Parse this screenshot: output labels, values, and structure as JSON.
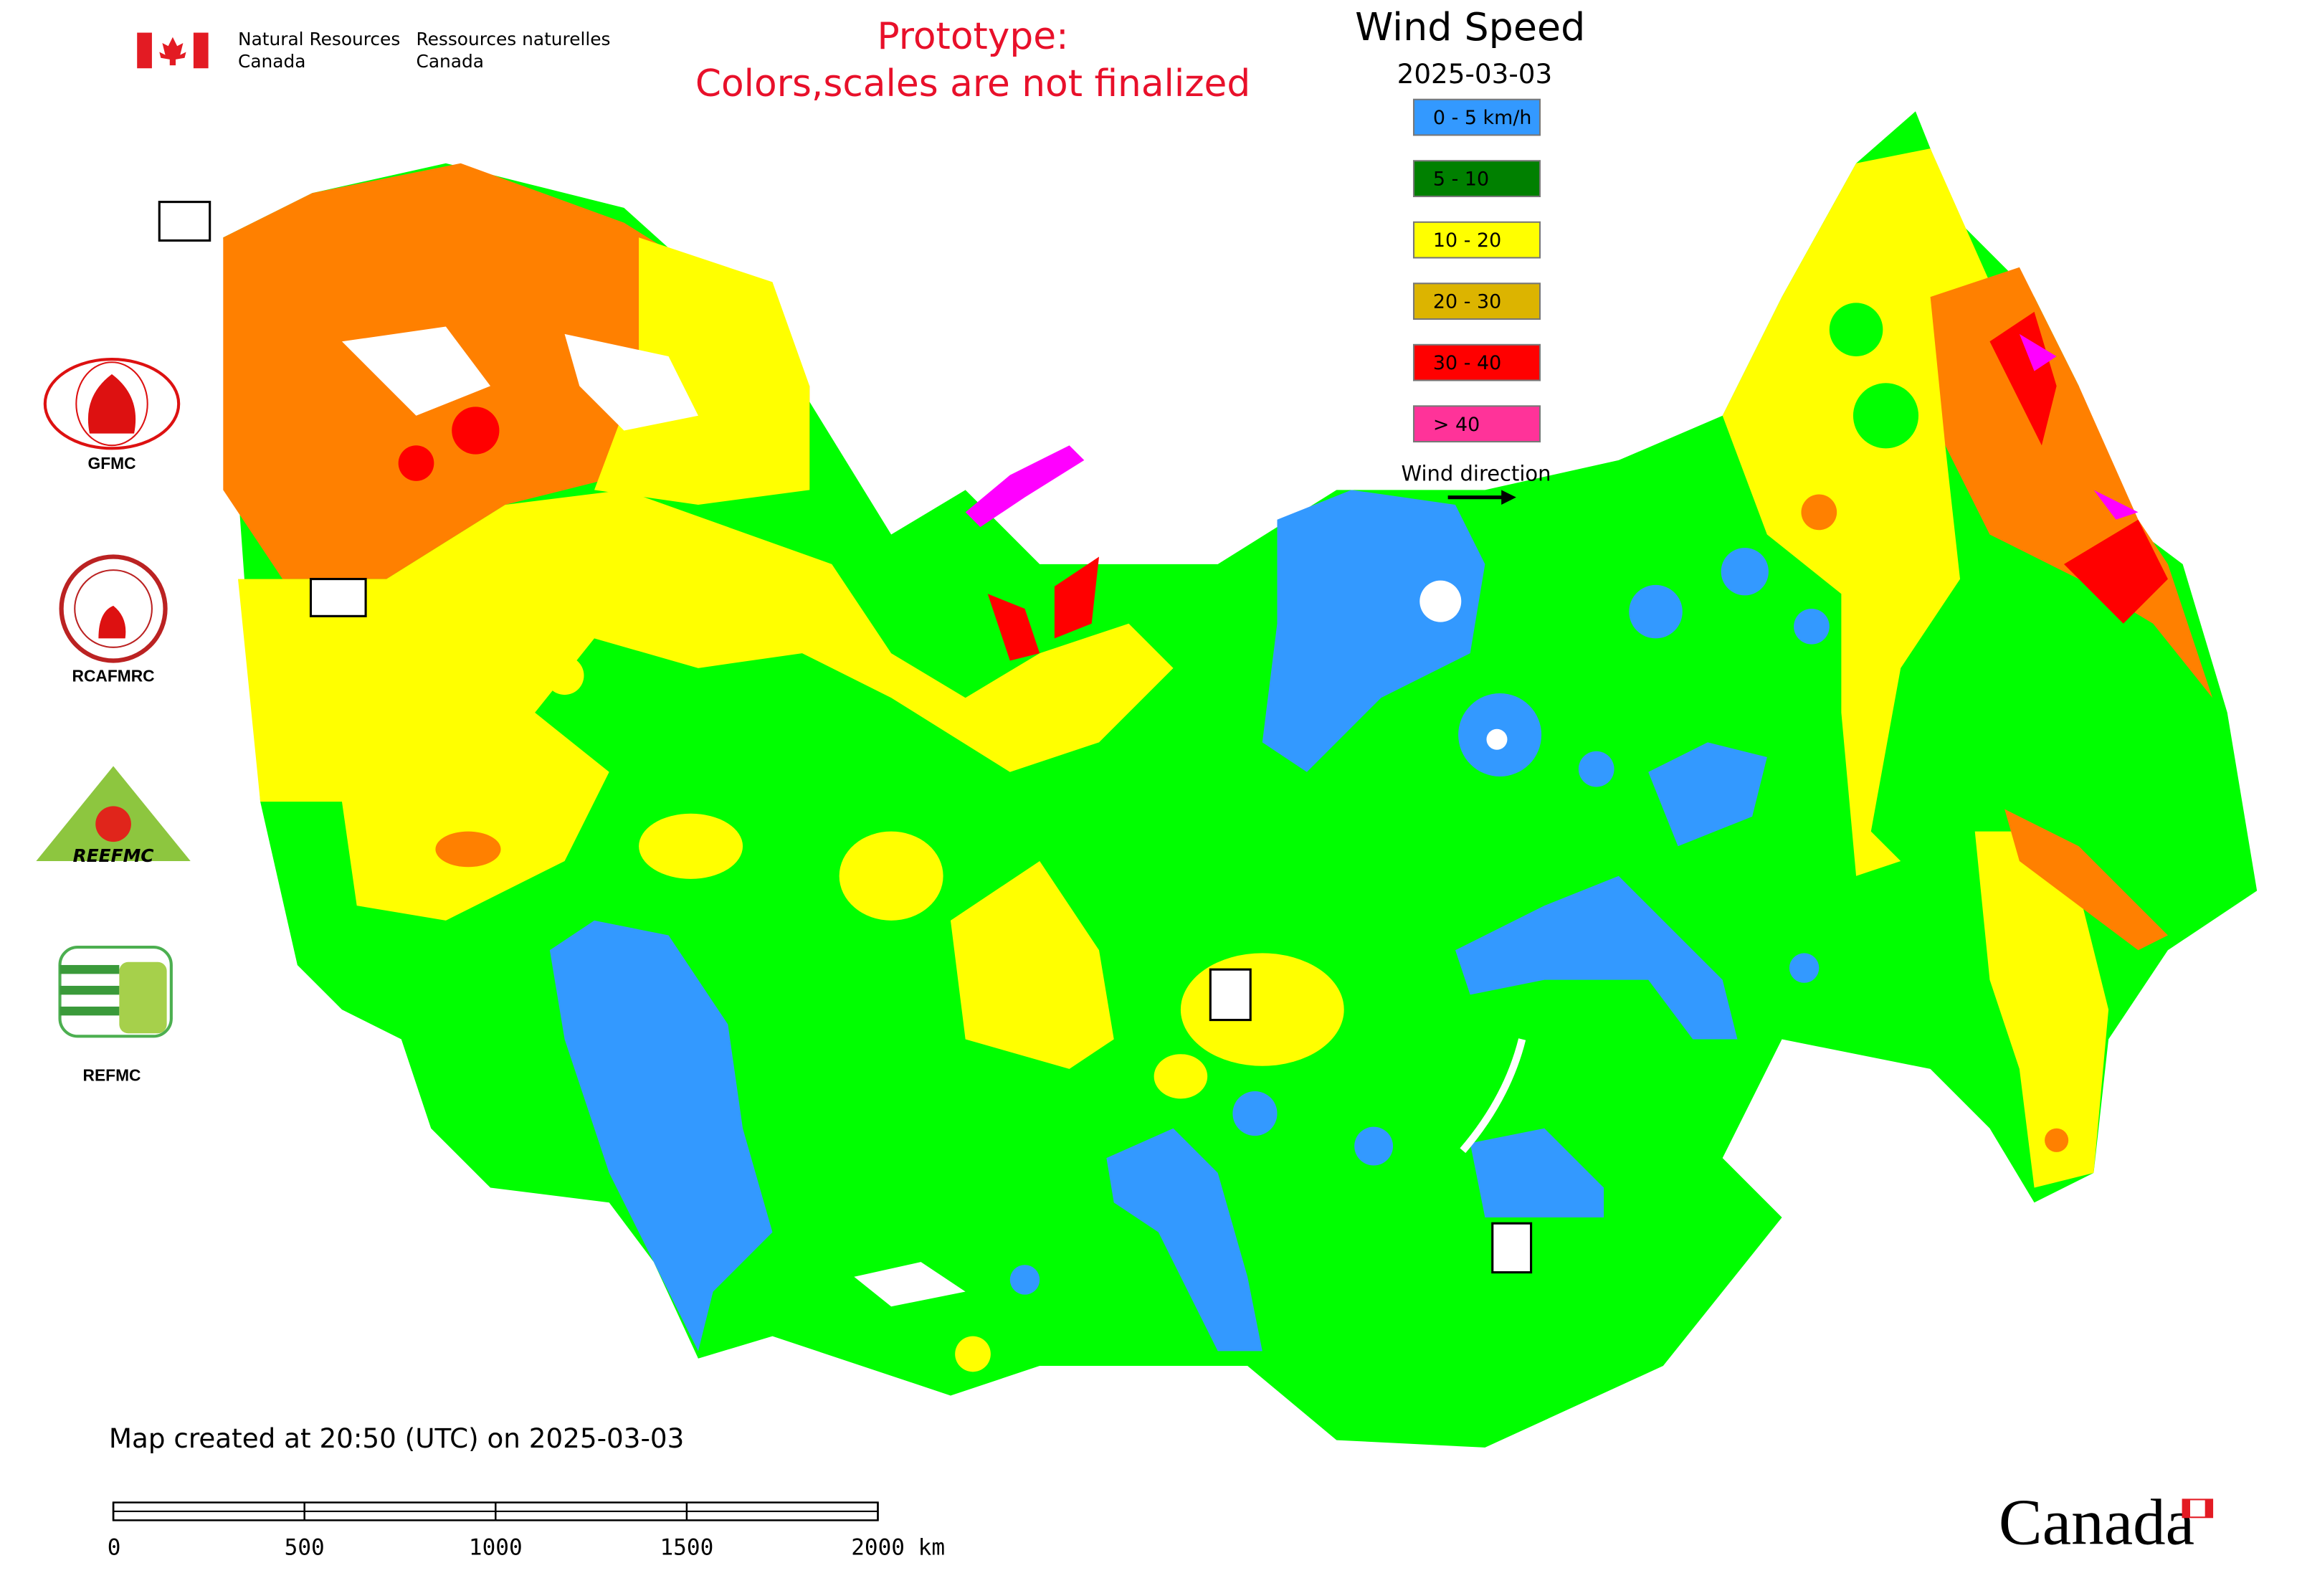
{
  "header": {
    "agency_en_1": "Natural Resources",
    "agency_en_2": "Canada",
    "agency_fr_1": "Ressources naturelles",
    "agency_fr_2": "Canada",
    "prototype_1": "Prototype:",
    "prototype_2": "Colors,scales are not finalized"
  },
  "legend": {
    "title": "Wind Speed",
    "date": "2025-03-03",
    "items": [
      {
        "label": "0 - 5 km/h",
        "color": "#3399ff"
      },
      {
        "label": "5 - 10",
        "color": "#008000"
      },
      {
        "label": "10 - 20",
        "color": "#ffff00"
      },
      {
        "label": "20 - 30",
        "color": "#dcb400"
      },
      {
        "label": "30 - 40",
        "color": "#ff0000"
      },
      {
        "label": "> 40",
        "color": "#ff3399"
      }
    ],
    "wind_direction": "Wind direction"
  },
  "logos": [
    "GFMC",
    "RCAFMRC",
    "REEFMC",
    "REFMC"
  ],
  "footer": {
    "created": "Map created at 20:50 (UTC) on 2025-03-03",
    "scale_labels": [
      "0",
      "500",
      "1000",
      "1500",
      "2000 km"
    ],
    "wordmark": "Canada"
  }
}
